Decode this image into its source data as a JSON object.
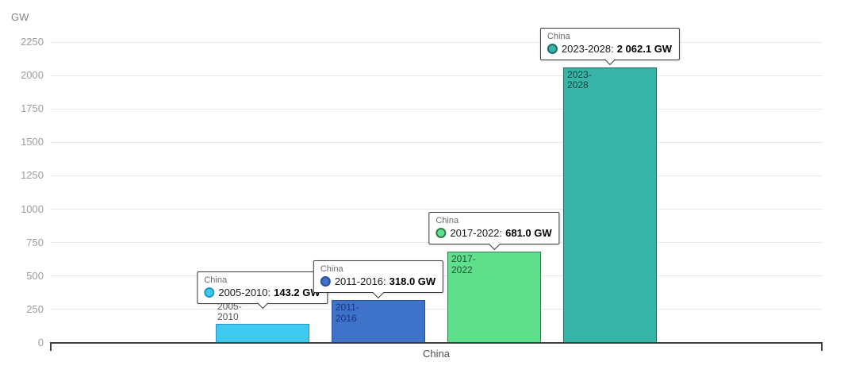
{
  "chart_data": {
    "type": "bar",
    "title": "",
    "unit_label": "GW",
    "xlabel": "",
    "ylabel": "GW",
    "categories": [
      "China"
    ],
    "ylim": [
      0,
      2250
    ],
    "y_ticks": [
      "0",
      "250",
      "500",
      "750",
      "1000",
      "1250",
      "1500",
      "1750",
      "2000",
      "2250"
    ],
    "grid": true,
    "legend_position": "none",
    "series": [
      {
        "name": "2005-2010",
        "category": "China",
        "value": 143.2,
        "label_lines": [
          "2005-",
          "2010"
        ],
        "color": "#3ec9f2",
        "border_color": "#2495c4",
        "label_color": "#555555",
        "tooltip": {
          "header": "China",
          "label": "2005-2010:",
          "value": "143.2 GW"
        }
      },
      {
        "name": "2011-2016",
        "category": "China",
        "value": 318.0,
        "label_lines": [
          "2011-",
          "2016"
        ],
        "color": "#3f72c9",
        "border_color": "#2a4f9b",
        "label_color": "#17357e",
        "tooltip": {
          "header": "China",
          "label": "2011-2016:",
          "value": "318.0 GW"
        }
      },
      {
        "name": "2017-2022",
        "category": "China",
        "value": 681.0,
        "label_lines": [
          "2017-",
          "2022"
        ],
        "color": "#5fe08c",
        "border_color": "#2f7d4a",
        "label_color": "#1d5434",
        "tooltip": {
          "header": "China",
          "label": "2017-2022:",
          "value": "681.0 GW"
        }
      },
      {
        "name": "2023-2028",
        "category": "China",
        "value": 2062.1,
        "label_lines": [
          "2023-",
          "2028"
        ],
        "color": "#38b5a9",
        "border_color": "#1f6b63",
        "label_color": "#0e4740",
        "tooltip": {
          "header": "China",
          "label": "2023-2028:",
          "value": "2 062.1 GW"
        }
      }
    ]
  }
}
